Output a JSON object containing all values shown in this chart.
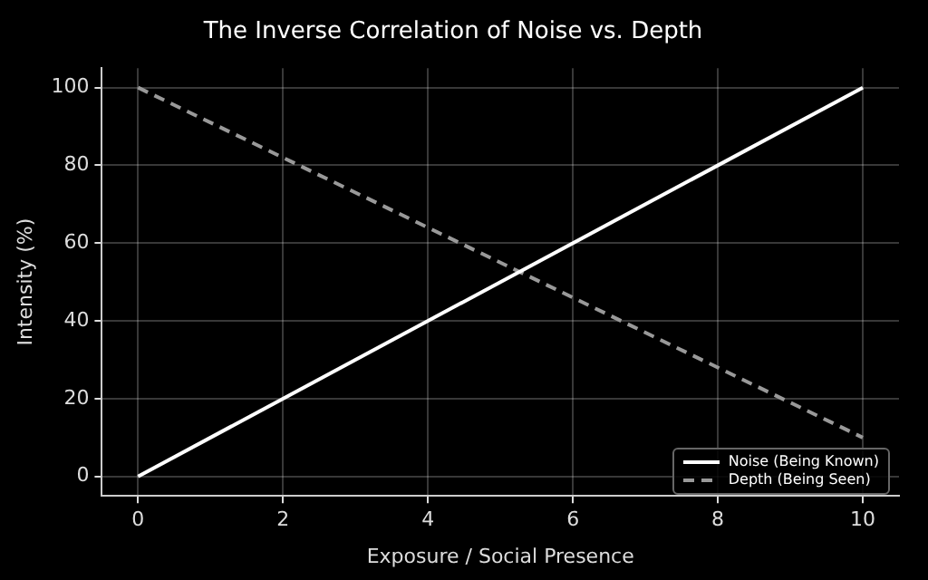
{
  "chart_data": {
    "type": "line",
    "title": "The Inverse Correlation of Noise vs. Depth",
    "xlabel": "Exposure / Social Presence",
    "ylabel": "Intensity (%)",
    "x": [
      0,
      10
    ],
    "series": [
      {
        "name": "Noise (Being Known)",
        "color": "#ffffff",
        "values": [
          0,
          100
        ],
        "line_style": "solid"
      },
      {
        "name": "Depth (Being Seen)",
        "color": "#999999",
        "values": [
          100,
          10
        ],
        "line_style": "dashed"
      }
    ],
    "xlim": [
      -0.5,
      10.5
    ],
    "xticks": [
      0,
      2,
      4,
      6,
      8,
      10
    ],
    "ylim": [
      -5,
      105
    ],
    "yticks": [
      0,
      20,
      40,
      60,
      80,
      100
    ],
    "grid": true,
    "legend": "bottom right",
    "marker": "none"
  }
}
